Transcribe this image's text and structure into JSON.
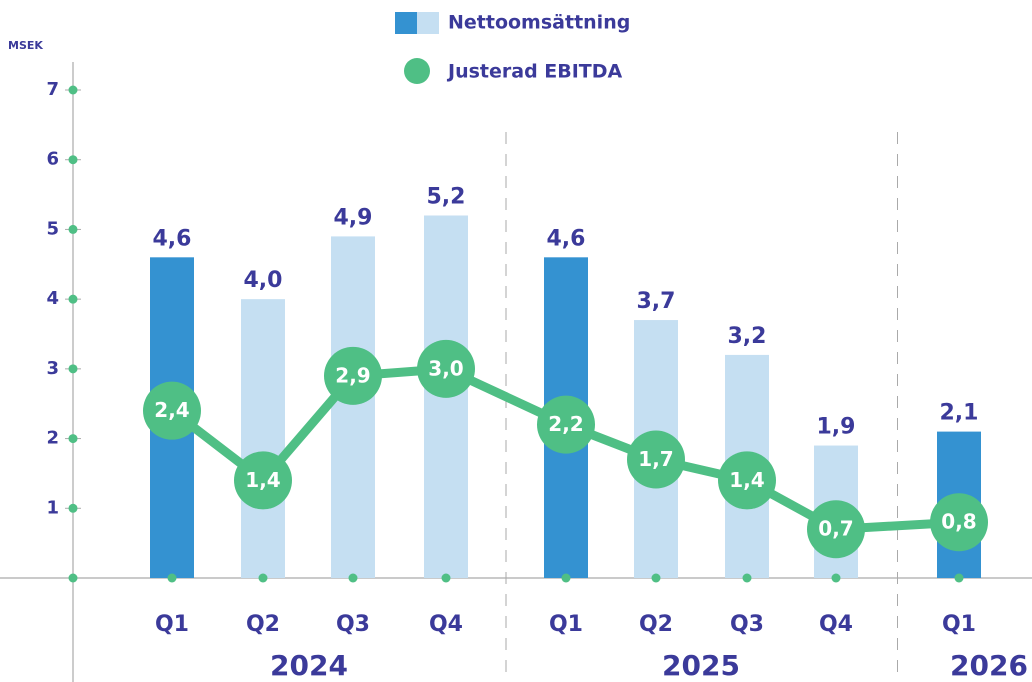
{
  "chart_data": {
    "type": "bar_line",
    "y_label": "MSEK",
    "categories": [
      "Q1",
      "Q2",
      "Q3",
      "Q4",
      "Q1",
      "Q2",
      "Q3",
      "Q4",
      "Q1"
    ],
    "category_groups": [
      "2024",
      "2024",
      "2024",
      "2024",
      "2025",
      "2025",
      "2025",
      "2025",
      "2026"
    ],
    "series": [
      {
        "name": "Nettoomsättning",
        "type": "bar",
        "colors": [
          "#3492d1",
          "#c5dff2",
          "#c5dff2",
          "#c5dff2",
          "#3492d1",
          "#c5dff2",
          "#c5dff2",
          "#c5dff2",
          "#3492d1"
        ],
        "values": [
          4.6,
          4.0,
          4.9,
          5.2,
          4.6,
          3.7,
          3.2,
          1.9,
          2.1
        ],
        "value_labels": [
          "4,6",
          "4,0",
          "4,9",
          "5,2",
          "4,6",
          "3,7",
          "3,2",
          "1,9",
          "2,1"
        ]
      },
      {
        "name": "Justerad EBITDA",
        "type": "line",
        "color": "#4fbf85",
        "values": [
          2.4,
          1.4,
          2.9,
          3.0,
          2.2,
          1.7,
          1.4,
          0.7,
          0.8
        ],
        "value_labels": [
          "2,4",
          "1,4",
          "2,9",
          "3,0",
          "2,2",
          "1,7",
          "1,4",
          "0,7",
          "0,8"
        ]
      }
    ],
    "ylim": [
      0,
      7
    ],
    "yticks": [
      1,
      2,
      3,
      4,
      5,
      6,
      7
    ]
  }
}
